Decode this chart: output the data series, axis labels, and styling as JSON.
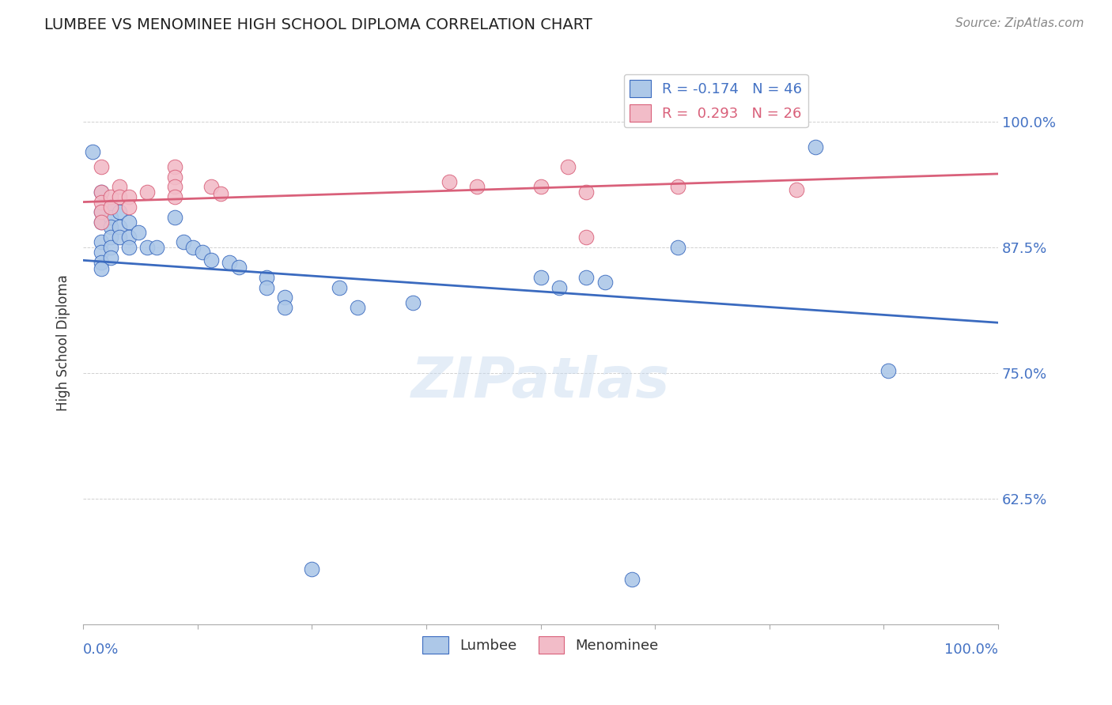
{
  "title": "LUMBEE VS MENOMINEE HIGH SCHOOL DIPLOMA CORRELATION CHART",
  "source": "Source: ZipAtlas.com",
  "ylabel": "High School Diploma",
  "ytick_labels": [
    "100.0%",
    "87.5%",
    "75.0%",
    "62.5%"
  ],
  "ytick_values": [
    1.0,
    0.875,
    0.75,
    0.625
  ],
  "xlim": [
    0.0,
    1.0
  ],
  "ylim": [
    0.5,
    1.06
  ],
  "legend_blue_text": "R = -0.174   N = 46",
  "legend_pink_text": "R =  0.293   N = 26",
  "blue_color": "#adc8e8",
  "pink_color": "#f2bcc8",
  "blue_line_color": "#3a6abf",
  "pink_line_color": "#d9607a",
  "blue_scatter": [
    [
      0.01,
      0.97
    ],
    [
      0.02,
      0.93
    ],
    [
      0.02,
      0.91
    ],
    [
      0.02,
      0.9
    ],
    [
      0.02,
      0.88
    ],
    [
      0.02,
      0.87
    ],
    [
      0.02,
      0.86
    ],
    [
      0.02,
      0.854
    ],
    [
      0.03,
      0.915
    ],
    [
      0.03,
      0.905
    ],
    [
      0.03,
      0.895
    ],
    [
      0.03,
      0.885
    ],
    [
      0.03,
      0.875
    ],
    [
      0.03,
      0.865
    ],
    [
      0.04,
      0.91
    ],
    [
      0.04,
      0.895
    ],
    [
      0.04,
      0.885
    ],
    [
      0.05,
      0.9
    ],
    [
      0.05,
      0.885
    ],
    [
      0.05,
      0.875
    ],
    [
      0.06,
      0.89
    ],
    [
      0.07,
      0.875
    ],
    [
      0.08,
      0.875
    ],
    [
      0.1,
      0.905
    ],
    [
      0.11,
      0.88
    ],
    [
      0.12,
      0.875
    ],
    [
      0.13,
      0.87
    ],
    [
      0.14,
      0.862
    ],
    [
      0.16,
      0.86
    ],
    [
      0.17,
      0.855
    ],
    [
      0.2,
      0.845
    ],
    [
      0.2,
      0.835
    ],
    [
      0.22,
      0.825
    ],
    [
      0.22,
      0.815
    ],
    [
      0.28,
      0.835
    ],
    [
      0.3,
      0.815
    ],
    [
      0.36,
      0.82
    ],
    [
      0.5,
      0.845
    ],
    [
      0.52,
      0.835
    ],
    [
      0.55,
      0.845
    ],
    [
      0.57,
      0.84
    ],
    [
      0.65,
      0.875
    ],
    [
      0.8,
      0.975
    ],
    [
      0.88,
      0.752
    ],
    [
      0.25,
      0.555
    ],
    [
      0.6,
      0.545
    ]
  ],
  "pink_scatter": [
    [
      0.02,
      0.955
    ],
    [
      0.02,
      0.93
    ],
    [
      0.02,
      0.92
    ],
    [
      0.02,
      0.91
    ],
    [
      0.02,
      0.9
    ],
    [
      0.03,
      0.925
    ],
    [
      0.03,
      0.915
    ],
    [
      0.04,
      0.935
    ],
    [
      0.04,
      0.925
    ],
    [
      0.05,
      0.925
    ],
    [
      0.05,
      0.915
    ],
    [
      0.07,
      0.93
    ],
    [
      0.1,
      0.955
    ],
    [
      0.1,
      0.945
    ],
    [
      0.1,
      0.935
    ],
    [
      0.1,
      0.925
    ],
    [
      0.14,
      0.935
    ],
    [
      0.15,
      0.928
    ],
    [
      0.4,
      0.94
    ],
    [
      0.43,
      0.935
    ],
    [
      0.5,
      0.935
    ],
    [
      0.53,
      0.955
    ],
    [
      0.55,
      0.93
    ],
    [
      0.65,
      0.935
    ],
    [
      0.78,
      0.932
    ],
    [
      0.55,
      0.885
    ]
  ],
  "watermark": "ZIPatlas",
  "blue_trend_x": [
    0.0,
    1.0
  ],
  "blue_trend_y": [
    0.862,
    0.8
  ],
  "pink_trend_x": [
    0.0,
    1.0
  ],
  "pink_trend_y": [
    0.92,
    0.948
  ]
}
